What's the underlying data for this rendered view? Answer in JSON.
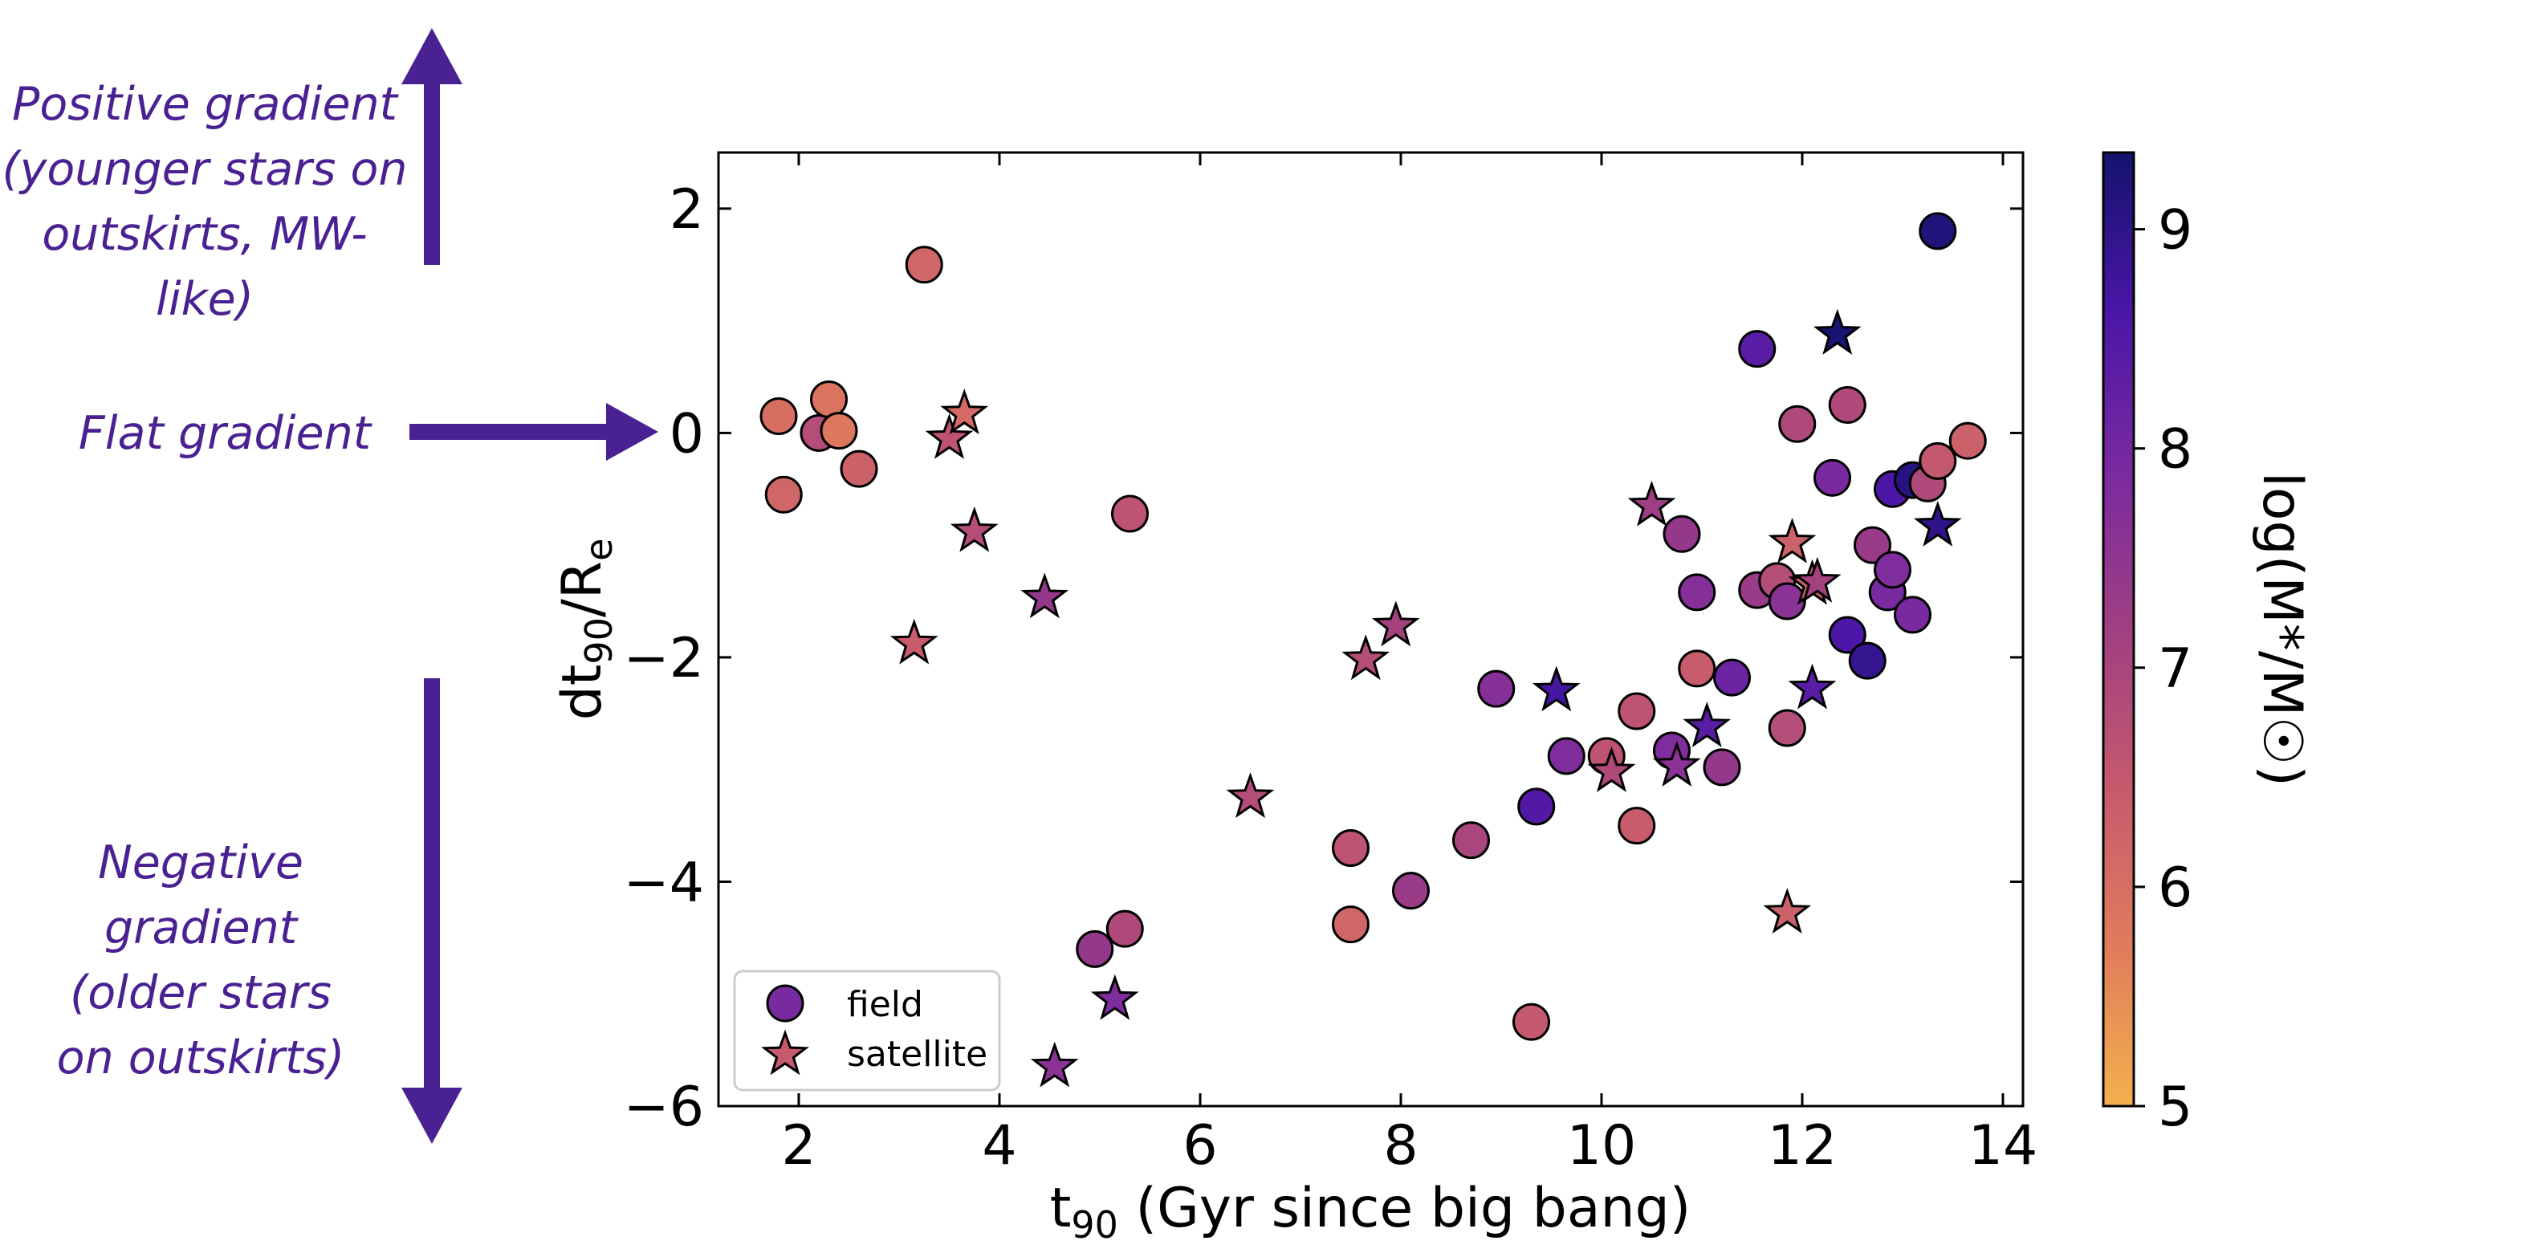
{
  "annotations": {
    "positive": "Positive gradient (younger stars on outskirts, MW-like)",
    "flat": "Flat gradient",
    "negative": "Negative gradient (older stars on outskirts)",
    "color": "#4a2192"
  },
  "chart_data": {
    "type": "scatter",
    "xlabel_main": "t",
    "xlabel_sub": "90",
    "xlabel_rest": " (Gyr since big bang)",
    "ylabel_main": "dt",
    "ylabel_sub": "90",
    "ylabel_mid": "/R",
    "ylabel_sub2": "e",
    "xlim": [
      1.2,
      14.2
    ],
    "ylim": [
      -6.0,
      2.5
    ],
    "xticks": [
      2,
      4,
      6,
      8,
      10,
      12,
      14
    ],
    "yticks": [
      -6,
      -4,
      -2,
      0,
      2
    ],
    "colorbar": {
      "label": "log(M*/M☉)",
      "range": [
        5,
        9.35
      ],
      "ticks": [
        5,
        6,
        7,
        8,
        9
      ],
      "colormap": [
        "#f3b04c",
        "#e07c5c",
        "#c65a6d",
        "#a03f82",
        "#7a2aa0",
        "#4a16a6",
        "#15136e"
      ]
    },
    "legend": {
      "position": "lower-left",
      "entries": [
        "field",
        "satellite"
      ]
    },
    "series": [
      {
        "name": "field",
        "marker": "circle",
        "points": [
          [
            1.8,
            0.15,
            6.0
          ],
          [
            1.85,
            -0.55,
            6.2
          ],
          [
            2.2,
            0.0,
            6.8
          ],
          [
            2.3,
            0.3,
            5.9
          ],
          [
            2.4,
            0.02,
            5.8
          ],
          [
            2.6,
            -0.32,
            6.3
          ],
          [
            3.25,
            1.5,
            6.2
          ],
          [
            5.3,
            -0.72,
            6.6
          ],
          [
            4.95,
            -4.6,
            7.4
          ],
          [
            5.25,
            -4.42,
            6.9
          ],
          [
            7.5,
            -3.7,
            6.6
          ],
          [
            7.5,
            -4.38,
            6.2
          ],
          [
            8.1,
            -4.08,
            7.3
          ],
          [
            8.7,
            -3.63,
            7.0
          ],
          [
            8.95,
            -2.28,
            7.7
          ],
          [
            9.35,
            -3.33,
            8.5
          ],
          [
            9.3,
            -5.25,
            6.5
          ],
          [
            9.65,
            -2.88,
            7.8
          ],
          [
            10.05,
            -2.88,
            6.6
          ],
          [
            10.35,
            -2.48,
            6.6
          ],
          [
            10.35,
            -3.5,
            6.4
          ],
          [
            10.7,
            -2.83,
            7.8
          ],
          [
            10.8,
            -0.9,
            7.4
          ],
          [
            10.95,
            -1.42,
            7.7
          ],
          [
            10.95,
            -2.1,
            6.4
          ],
          [
            11.2,
            -2.98,
            7.4
          ],
          [
            11.3,
            -2.18,
            8.1
          ],
          [
            11.55,
            -1.4,
            7.3
          ],
          [
            11.55,
            0.75,
            8.4
          ],
          [
            11.75,
            -1.32,
            6.8
          ],
          [
            11.85,
            -1.5,
            7.6
          ],
          [
            11.85,
            -2.63,
            6.8
          ],
          [
            11.95,
            0.08,
            6.9
          ],
          [
            12.3,
            -0.4,
            7.9
          ],
          [
            12.45,
            0.25,
            6.9
          ],
          [
            12.45,
            -1.8,
            8.6
          ],
          [
            12.65,
            -2.03,
            8.9
          ],
          [
            12.7,
            -1.0,
            7.3
          ],
          [
            12.85,
            -1.42,
            7.9
          ],
          [
            12.9,
            -1.22,
            7.8
          ],
          [
            12.9,
            -0.5,
            8.6
          ],
          [
            13.1,
            -0.42,
            9.1
          ],
          [
            13.1,
            -1.62,
            7.9
          ],
          [
            13.25,
            -0.45,
            6.9
          ],
          [
            13.35,
            -0.25,
            6.5
          ],
          [
            13.35,
            1.8,
            9.2
          ],
          [
            13.65,
            -0.07,
            6.3
          ]
        ]
      },
      {
        "name": "satellite",
        "marker": "star",
        "points": [
          [
            3.15,
            -1.88,
            6.4
          ],
          [
            3.5,
            -0.05,
            6.6
          ],
          [
            3.65,
            0.17,
            6.1
          ],
          [
            3.75,
            -0.88,
            6.8
          ],
          [
            4.45,
            -1.47,
            7.4
          ],
          [
            4.55,
            -5.65,
            7.6
          ],
          [
            5.15,
            -5.05,
            7.8
          ],
          [
            6.5,
            -3.25,
            6.8
          ],
          [
            7.65,
            -2.02,
            6.8
          ],
          [
            7.95,
            -1.72,
            7.1
          ],
          [
            9.55,
            -2.3,
            8.7
          ],
          [
            10.1,
            -3.02,
            6.9
          ],
          [
            10.5,
            -0.65,
            7.2
          ],
          [
            10.75,
            -2.97,
            7.6
          ],
          [
            11.05,
            -2.62,
            8.4
          ],
          [
            11.85,
            -4.28,
            6.3
          ],
          [
            11.9,
            -0.98,
            6.3
          ],
          [
            12.1,
            -1.35,
            6.3
          ],
          [
            12.15,
            -1.33,
            7.1
          ],
          [
            12.1,
            -2.28,
            8.4
          ],
          [
            12.35,
            0.88,
            9.3
          ],
          [
            13.35,
            -0.83,
            9.0
          ]
        ]
      }
    ]
  }
}
